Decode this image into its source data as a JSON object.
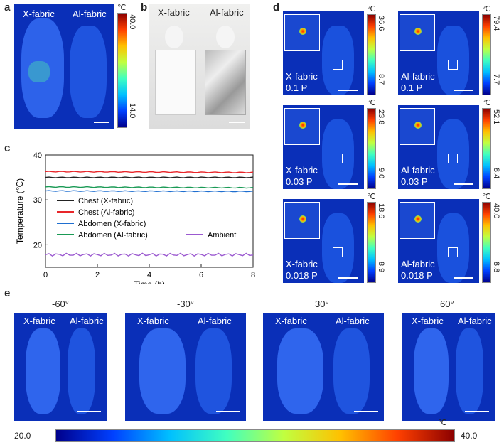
{
  "panels": {
    "a": {
      "letter": "a",
      "label_left": "X-fabric",
      "label_right": "Al-fabric",
      "unit": "℃",
      "max": "40.0",
      "min": "14.0"
    },
    "b": {
      "letter": "b",
      "label_left": "X-fabric",
      "label_right": "Al-fabric"
    },
    "d": {
      "letter": "d",
      "unit": "℃",
      "images": [
        {
          "fabric": "X-fabric",
          "power": "0.1 P",
          "max": "36.6",
          "min": "8.7"
        },
        {
          "fabric": "Al-fabric",
          "power": "0.1 P",
          "max": "79.4",
          "min": "7.7"
        },
        {
          "fabric": "X-fabric",
          "power": "0.03 P",
          "max": "23.8",
          "min": "9.0"
        },
        {
          "fabric": "Al-fabric",
          "power": "0.03 P",
          "max": "52.1",
          "min": "8.4"
        },
        {
          "fabric": "X-fabric",
          "power": "0.018 P",
          "max": "18.6",
          "min": "8.9"
        },
        {
          "fabric": "Al-fabric",
          "power": "0.018 P",
          "max": "40.0",
          "min": "8.8"
        }
      ]
    },
    "e": {
      "letter": "e",
      "unit": "℃",
      "min": "20.0",
      "max": "40.0",
      "angles": [
        {
          "angle": "-60°",
          "left": "X-fabric",
          "right": "Al-fabric"
        },
        {
          "angle": "-30°",
          "left": "X-fabric",
          "right": "Al-fabric"
        },
        {
          "angle": "30°",
          "left": "X-fabric",
          "right": "Al-fabric"
        },
        {
          "angle": "60°",
          "left": "X-fabric",
          "right": "Al-fabric"
        }
      ]
    }
  },
  "chart_data": {
    "panel": "c",
    "type": "line",
    "xlabel": "Time (h)",
    "ylabel": "Temperature (℃)",
    "xlim": [
      0,
      8
    ],
    "ylim": [
      15,
      40
    ],
    "xticks": [
      0,
      2,
      4,
      6,
      8
    ],
    "yticks": [
      20,
      30,
      40
    ],
    "grid": false,
    "legend_placement": "lower-left",
    "series": [
      {
        "name": "Chest (X-fabric)",
        "color": "#222222",
        "x": [
          0,
          8
        ],
        "y": [
          35.0,
          35.0
        ]
      },
      {
        "name": "Chest (Al-fabric)",
        "color": "#e8262a",
        "x": [
          0,
          8
        ],
        "y": [
          36.3,
          36.1
        ]
      },
      {
        "name": "Abdomen (X-fabric)",
        "color": "#1f6fd0",
        "x": [
          0,
          8
        ],
        "y": [
          32.0,
          31.9
        ]
      },
      {
        "name": "Abdomen (Al-fabric)",
        "color": "#1a9a55",
        "x": [
          0,
          8
        ],
        "y": [
          32.9,
          32.7
        ]
      },
      {
        "name": "Ambient",
        "color": "#9b59d0",
        "x": [
          0,
          8
        ],
        "y": [
          17.8,
          17.8
        ]
      }
    ]
  }
}
